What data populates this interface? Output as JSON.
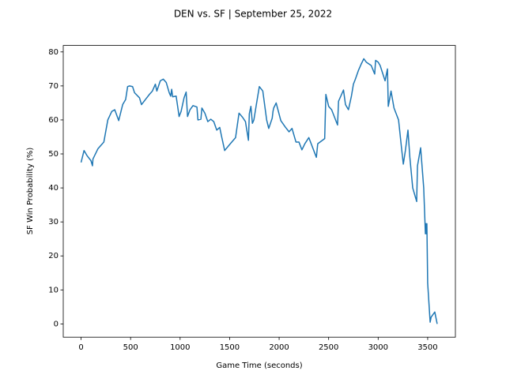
{
  "chart_data": {
    "type": "line",
    "title": "DEN vs. SF | September 25, 2022",
    "x_label": "Game Time (seconds)",
    "y_label": "SF Win Probability (%)",
    "x": [
      0,
      30,
      60,
      100,
      115,
      120,
      170,
      230,
      270,
      310,
      340,
      380,
      420,
      450,
      470,
      490,
      520,
      540,
      590,
      610,
      650,
      690,
      720,
      750,
      765,
      800,
      830,
      860,
      890,
      905,
      915,
      925,
      960,
      990,
      1010,
      1040,
      1061,
      1075,
      1100,
      1130,
      1170,
      1180,
      1210,
      1220,
      1250,
      1280,
      1310,
      1340,
      1370,
      1400,
      1420,
      1450,
      1507,
      1560,
      1595,
      1630,
      1660,
      1690,
      1699,
      1715,
      1730,
      1745,
      1770,
      1800,
      1835,
      1874,
      1895,
      1930,
      1938,
      1945,
      1970,
      2017,
      2060,
      2100,
      2130,
      2170,
      2200,
      2230,
      2260,
      2300,
      2376,
      2390,
      2460,
      2472,
      2500,
      2530,
      2590,
      2600,
      2650,
      2670,
      2700,
      2730,
      2750,
      2770,
      2800,
      2830,
      2855,
      2880,
      2930,
      2965,
      2974,
      3000,
      3020,
      3070,
      3094,
      3102,
      3115,
      3130,
      3160,
      3206,
      3235,
      3254,
      3275,
      3301,
      3320,
      3349,
      3389,
      3397,
      3429,
      3460,
      3477,
      3482,
      3487,
      3492,
      3500,
      3525,
      3535,
      3572,
      3596
    ],
    "series": [
      {
        "name": "SF",
        "color": "#1f77b4",
        "values": [
          47.5,
          51,
          49.5,
          48,
          46.5,
          48.5,
          51.5,
          53.5,
          60,
          62.5,
          63,
          59.8,
          64.5,
          66,
          69.8,
          70,
          69.8,
          68,
          66.5,
          64.5,
          66,
          67.5,
          68.5,
          70.5,
          68.5,
          71.5,
          72,
          71,
          68,
          67,
          69,
          66.8,
          67,
          61,
          62.5,
          66.5,
          68.2,
          61,
          63,
          64.2,
          63.8,
          60,
          60.2,
          63.5,
          62,
          59.5,
          60.2,
          59.5,
          57,
          57.8,
          55,
          51,
          53,
          54.8,
          62,
          60.8,
          59.5,
          54,
          61.8,
          64,
          59,
          60,
          64.5,
          69.8,
          68.5,
          60,
          57.5,
          60.5,
          62.5,
          63.5,
          65,
          59.8,
          58,
          56.5,
          57.5,
          53.5,
          53.5,
          51.2,
          53,
          54.8,
          49,
          53,
          54.5,
          67.5,
          64,
          63,
          58.5,
          65.5,
          68.8,
          64.5,
          63,
          67,
          70.5,
          72,
          74.5,
          76.5,
          78,
          77,
          76,
          73.5,
          77.5,
          77,
          76,
          71.5,
          75,
          64,
          66,
          68.5,
          63.5,
          60,
          52,
          47,
          51,
          57,
          49,
          40,
          36,
          46.5,
          51.8,
          40,
          26.5,
          29.5,
          26.5,
          29.5,
          12,
          0.5,
          2,
          3.5,
          0
        ]
      }
    ],
    "xlim": [
      -180,
      3780
    ],
    "ylim": [
      -3.9,
      81.9
    ],
    "xticks": [
      0,
      500,
      1000,
      1500,
      2000,
      2500,
      3000,
      3500
    ],
    "yticks": [
      0,
      10,
      20,
      30,
      40,
      50,
      60,
      70,
      80
    ]
  }
}
